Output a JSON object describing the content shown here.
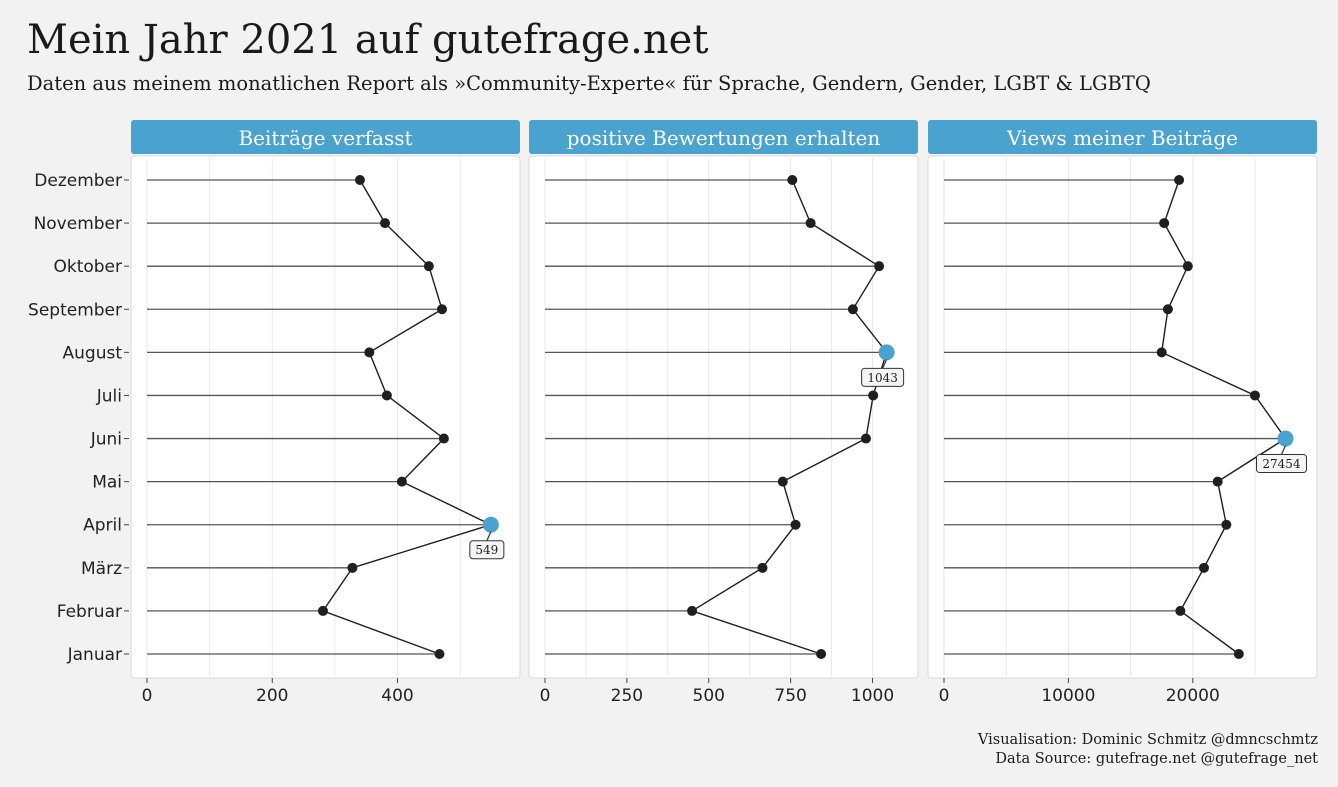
{
  "title": "Mein Jahr 2021 auf gutefrage.net",
  "subtitle": "Daten aus meinem monatlichen Report als »Community-Experte« für Sprache, Gendern, Gender, LGBT & LGBTQ",
  "caption": {
    "line1": "Visualisation: Dominic Schmitz @dmncschmtz",
    "line2": "Data Source: gutefrage.net @gutefrage_net"
  },
  "colors": {
    "background": "#f2f2f2",
    "panel": "#ffffff",
    "strip": "#4aa3cf",
    "highlight": "#4aa3cf",
    "point": "#1f1f1f",
    "segment": "#555555",
    "grid": "#e8e8e8"
  },
  "chart_data": {
    "type": "lollipop-facets",
    "months": [
      "Januar",
      "Februar",
      "März",
      "April",
      "Mai",
      "Juni",
      "Juli",
      "August",
      "September",
      "Oktober",
      "November",
      "Dezember"
    ],
    "panels": [
      {
        "name": "Beiträge verfasst",
        "values": [
          467,
          281,
          328,
          549,
          407,
          474,
          383,
          355,
          471,
          450,
          380,
          340
        ],
        "xlim": [
          0,
          570
        ],
        "ticks": [
          0,
          200,
          400
        ],
        "max_label": "549"
      },
      {
        "name": "positive Bewertungen erhalten",
        "values": [
          843,
          449,
          664,
          765,
          726,
          980,
          1002,
          1043,
          940,
          1020,
          811,
          755
        ],
        "xlim": [
          0,
          1090
        ],
        "ticks": [
          0,
          250,
          500,
          750,
          1000
        ],
        "max_label": "1043"
      },
      {
        "name": "Views meiner Beiträge",
        "values": [
          23700,
          19000,
          20900,
          22700,
          22000,
          27454,
          25000,
          17500,
          18000,
          19600,
          17700,
          18900
        ],
        "xlim": [
          0,
          28700
        ],
        "ticks": [
          0,
          10000,
          20000
        ],
        "max_label": "27454"
      }
    ],
    "grid": true,
    "legend": "none"
  }
}
